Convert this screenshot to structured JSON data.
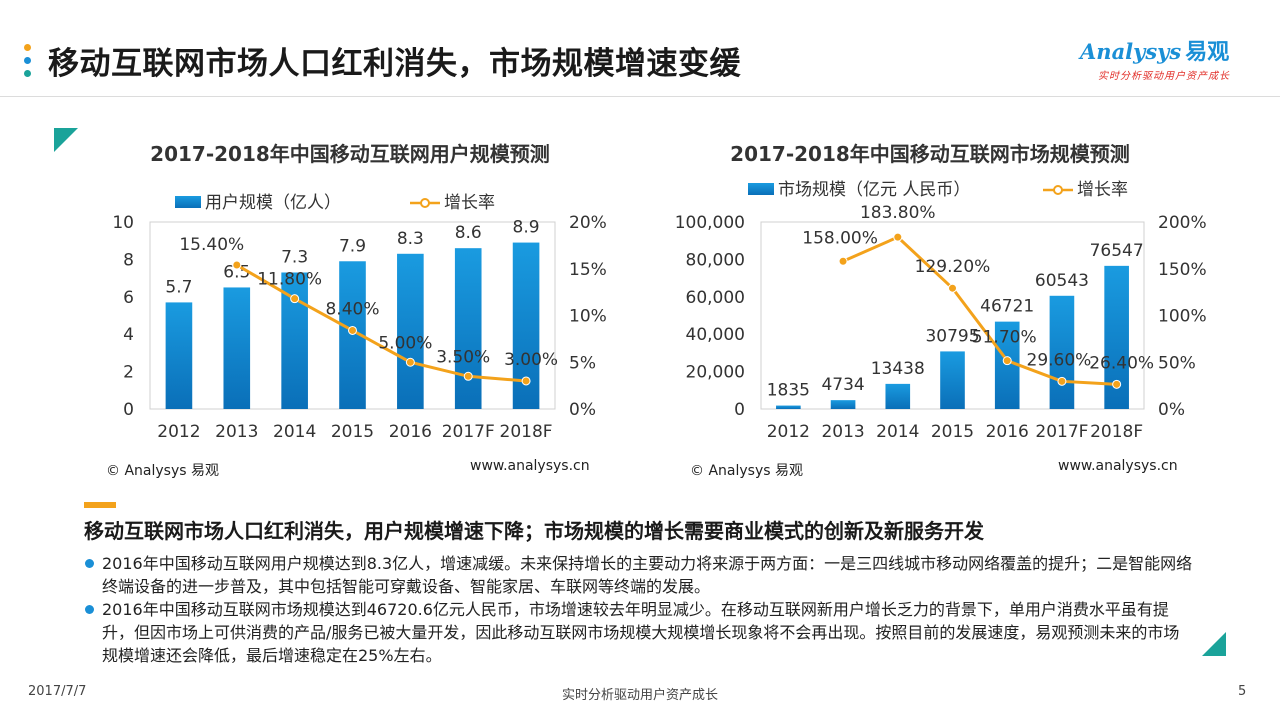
{
  "header": {
    "title": "移动互联网市场人口红利消失，市场规模增速变缓",
    "dot_colors": [
      "#f3a21b",
      "#1a8fd6",
      "#1aa39a"
    ],
    "logo_text": "nalysys",
    "logo_cn": "易观",
    "logo_tagline": "实时分析驱动用户资产成长"
  },
  "chart_data": [
    {
      "type": "bar",
      "title": "2017-2018年中国移动互联网用户规模预测",
      "categories": [
        "2012",
        "2013",
        "2014",
        "2015",
        "2016",
        "2017F",
        "2018F"
      ],
      "series": [
        {
          "name": "用户规模（亿人）",
          "axis": "left",
          "type": "bar",
          "color": "#1a8fd6",
          "values": [
            5.7,
            6.5,
            7.3,
            7.9,
            8.3,
            8.6,
            8.9
          ],
          "labels": [
            "5.7",
            "6.5",
            "7.3",
            "7.9",
            "8.3",
            "8.6",
            "8.9"
          ]
        },
        {
          "name": "增长率",
          "axis": "right",
          "type": "line",
          "color": "#f3a21b",
          "values": [
            null,
            15.4,
            11.8,
            8.4,
            5.0,
            3.5,
            3.0
          ],
          "labels": [
            "",
            "15.40%",
            "11.80%",
            "8.40%",
            "5.00%",
            "3.50%",
            "3.00%"
          ]
        }
      ],
      "ylim_left": [
        0,
        10
      ],
      "yticks_left": [
        "0",
        "2",
        "4",
        "6",
        "8",
        "10"
      ],
      "ylim_right": [
        0,
        20
      ],
      "yticks_right": [
        "0%",
        "5%",
        "10%",
        "15%",
        "20%"
      ],
      "source": "© Analysys 易观",
      "url": "www.analysys.cn"
    },
    {
      "type": "bar",
      "title": "2017-2018年中国移动互联网市场规模预测",
      "categories": [
        "2012",
        "2013",
        "2014",
        "2015",
        "2016",
        "2017F",
        "2018F"
      ],
      "series": [
        {
          "name": "市场规模（亿元 人民币）",
          "axis": "left",
          "type": "bar",
          "color": "#1a8fd6",
          "values": [
            1835,
            4734,
            13438,
            30795,
            46721,
            60543,
            76547
          ],
          "labels": [
            "1835",
            "4734",
            "13438",
            "30795",
            "46721",
            "60543",
            "76547"
          ]
        },
        {
          "name": "增长率",
          "axis": "right",
          "type": "line",
          "color": "#f3a21b",
          "values": [
            null,
            158.0,
            183.8,
            129.2,
            51.7,
            29.6,
            26.4
          ],
          "labels": [
            "",
            "158.00%",
            "183.80%",
            "129.20%",
            "51.70%",
            "29.60%",
            "26.40%"
          ]
        }
      ],
      "ylim_left": [
        0,
        100000
      ],
      "yticks_left": [
        "0",
        "20,000",
        "40,000",
        "60,000",
        "80,000",
        "100,000"
      ],
      "ylim_right": [
        0,
        200
      ],
      "yticks_right": [
        "0%",
        "50%",
        "100%",
        "150%",
        "200%"
      ],
      "source": "© Analysys 易观",
      "url": "www.analysys.cn"
    }
  ],
  "summary": {
    "title": "移动互联网市场人口红利消失，用户规模增速下降；市场规模的增长需要商业模式的创新及新服务开发",
    "bullets": [
      "2016年中国移动互联网用户规模达到8.3亿人，增速减缓。未来保持增长的主要动力将来源于两方面：一是三四线城市移动网络覆盖的提升；二是智能网络终端设备的进一步普及，其中包括智能可穿戴设备、智能家居、车联网等终端的发展。",
      "2016年中国移动互联网市场规模达到46720.6亿元人民币，市场增速较去年明显减少。在移动互联网新用户增长乏力的背景下，单用户消费水平虽有提升，但因市场上可供消费的产品/服务已被大量开发，因此移动互联网市场规模大规模增长现象将不会再出现。按照目前的发展速度，易观预测未来的市场规模增速还会降低，最后增速稳定在25%左右。"
    ]
  },
  "footer": {
    "date": "2017/7/7",
    "center": "实时分析驱动用户资产成长",
    "page": "5"
  }
}
